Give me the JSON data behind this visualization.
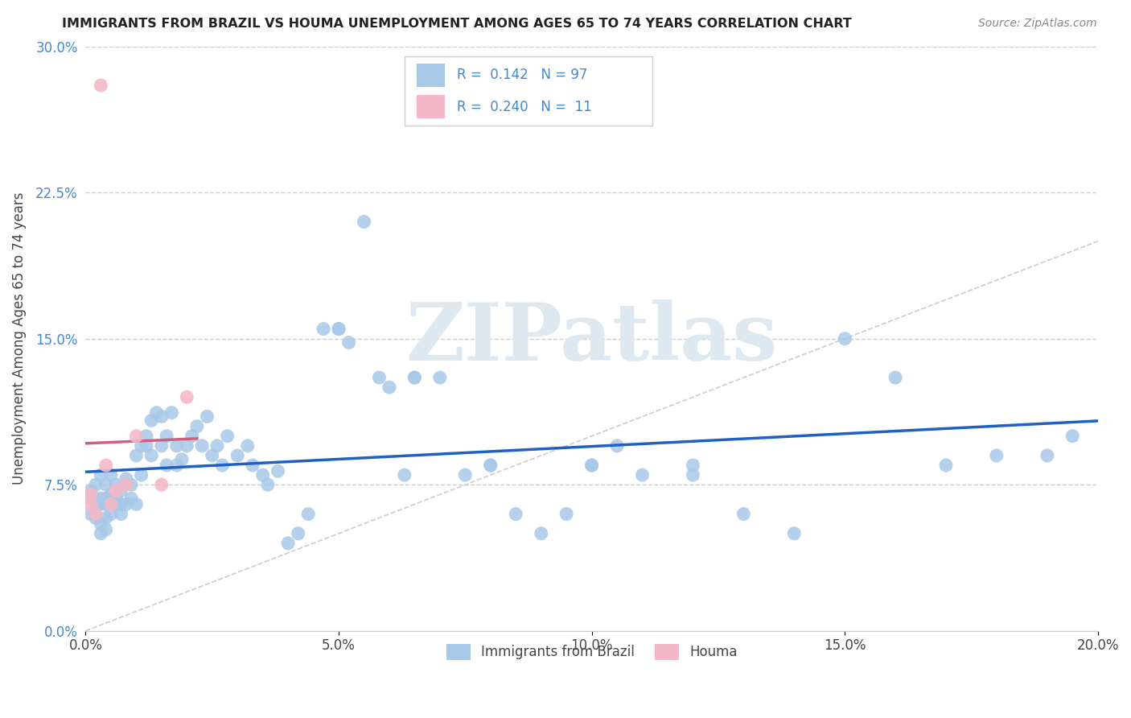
{
  "title": "IMMIGRANTS FROM BRAZIL VS HOUMA UNEMPLOYMENT AMONG AGES 65 TO 74 YEARS CORRELATION CHART",
  "source": "Source: ZipAtlas.com",
  "ylabel": "Unemployment Among Ages 65 to 74 years",
  "xlabel_ticks": [
    "0.0%",
    "5.0%",
    "10.0%",
    "15.0%",
    "20.0%"
  ],
  "ylabel_ticks": [
    "0.0%",
    "7.5%",
    "15.0%",
    "22.5%",
    "30.0%"
  ],
  "xlim": [
    0.0,
    0.2
  ],
  "ylim": [
    0.0,
    0.3
  ],
  "legend1_label": "Immigrants from Brazil",
  "legend2_label": "Houma",
  "R1": 0.142,
  "N1": 97,
  "R2": 0.24,
  "N2": 11,
  "color_blue": "#a8c8e8",
  "color_pink": "#f4b8c8",
  "trend_color_blue": "#2060c0",
  "trend_color_pink": "#d06080",
  "watermark": "ZIPatlas",
  "brazil_x": [
    0.001,
    0.001,
    0.001,
    0.002,
    0.002,
    0.002,
    0.002,
    0.003,
    0.003,
    0.003,
    0.003,
    0.003,
    0.004,
    0.004,
    0.004,
    0.004,
    0.004,
    0.005,
    0.005,
    0.005,
    0.005,
    0.006,
    0.006,
    0.006,
    0.007,
    0.007,
    0.007,
    0.008,
    0.008,
    0.009,
    0.009,
    0.01,
    0.01,
    0.011,
    0.011,
    0.012,
    0.012,
    0.013,
    0.013,
    0.014,
    0.015,
    0.015,
    0.016,
    0.016,
    0.017,
    0.018,
    0.018,
    0.019,
    0.02,
    0.021,
    0.022,
    0.023,
    0.024,
    0.025,
    0.026,
    0.027,
    0.028,
    0.03,
    0.032,
    0.033,
    0.035,
    0.036,
    0.038,
    0.04,
    0.042,
    0.044,
    0.047,
    0.05,
    0.052,
    0.055,
    0.058,
    0.06,
    0.063,
    0.065,
    0.07,
    0.075,
    0.08,
    0.085,
    0.09,
    0.095,
    0.1,
    0.105,
    0.11,
    0.12,
    0.13,
    0.14,
    0.15,
    0.16,
    0.17,
    0.18,
    0.19,
    0.195,
    0.05,
    0.065,
    0.08,
    0.1,
    0.12
  ],
  "brazil_y": [
    0.068,
    0.072,
    0.06,
    0.075,
    0.068,
    0.065,
    0.058,
    0.08,
    0.068,
    0.065,
    0.055,
    0.05,
    0.075,
    0.068,
    0.065,
    0.058,
    0.052,
    0.08,
    0.07,
    0.065,
    0.06,
    0.075,
    0.065,
    0.068,
    0.072,
    0.065,
    0.06,
    0.078,
    0.065,
    0.075,
    0.068,
    0.09,
    0.065,
    0.095,
    0.08,
    0.1,
    0.095,
    0.108,
    0.09,
    0.112,
    0.11,
    0.095,
    0.1,
    0.085,
    0.112,
    0.095,
    0.085,
    0.088,
    0.095,
    0.1,
    0.105,
    0.095,
    0.11,
    0.09,
    0.095,
    0.085,
    0.1,
    0.09,
    0.095,
    0.085,
    0.08,
    0.075,
    0.082,
    0.045,
    0.05,
    0.06,
    0.155,
    0.155,
    0.148,
    0.21,
    0.13,
    0.125,
    0.08,
    0.13,
    0.13,
    0.08,
    0.085,
    0.06,
    0.05,
    0.06,
    0.085,
    0.095,
    0.08,
    0.085,
    0.06,
    0.05,
    0.15,
    0.13,
    0.085,
    0.09,
    0.09,
    0.1,
    0.155,
    0.13,
    0.085,
    0.085,
    0.08
  ],
  "houma_x": [
    0.001,
    0.001,
    0.002,
    0.003,
    0.004,
    0.005,
    0.006,
    0.008,
    0.01,
    0.015,
    0.02
  ],
  "houma_y": [
    0.07,
    0.065,
    0.06,
    0.28,
    0.085,
    0.065,
    0.072,
    0.075,
    0.1,
    0.075,
    0.12
  ]
}
